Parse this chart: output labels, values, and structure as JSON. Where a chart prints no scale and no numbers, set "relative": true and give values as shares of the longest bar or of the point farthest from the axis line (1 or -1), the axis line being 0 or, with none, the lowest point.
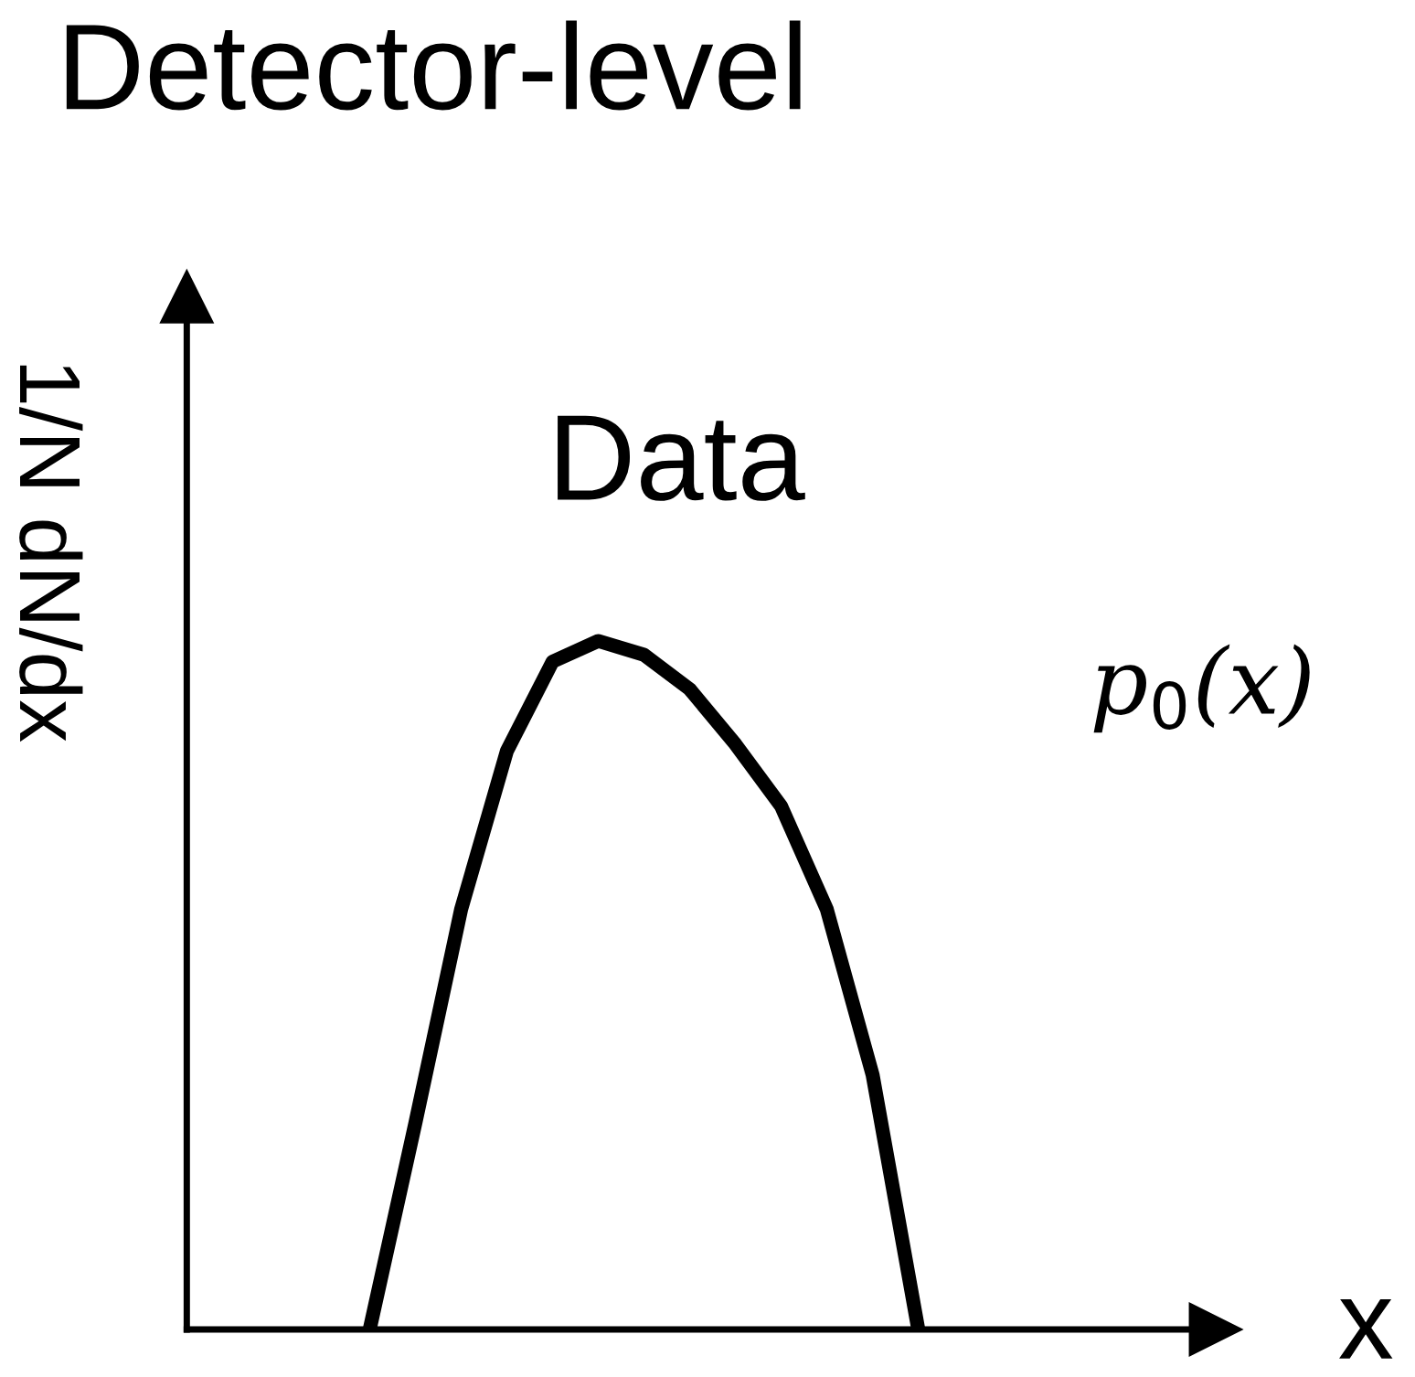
{
  "chart_data": {
    "type": "line",
    "title": "Detector-level",
    "ylabel": "1/N dN/dx",
    "xlabel": "x",
    "relative": true,
    "annotations": [
      "Data",
      "p$_{0}$(x)"
    ],
    "categories": [
      null,
      null,
      null,
      null,
      null,
      null,
      null,
      null,
      null,
      null,
      null,
      null,
      null,
      null,
      null,
      null,
      null,
      null,
      null,
      null,
      null,
      null,
      null
    ],
    "series": [
      {
        "color": "#000000",
        "values": [
          null,
          null,
          null,
          null,
          0,
          0.3,
          0.61,
          0.84,
          0.97,
          1.0,
          0.98,
          0.93,
          0.85,
          0.76,
          0.61,
          0.37,
          0,
          null,
          null,
          null,
          null,
          null,
          null
        ]
      }
    ],
    "marker": "none",
    "line_style": "solid",
    "grid": false
  }
}
